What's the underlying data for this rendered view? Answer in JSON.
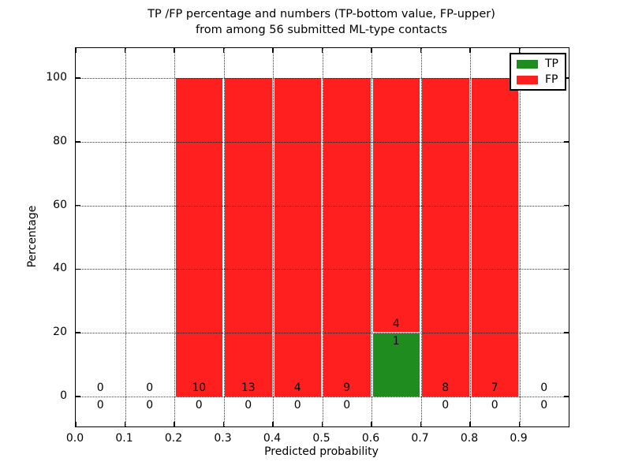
{
  "figure": {
    "title_line1": "TP /FP percentage and numbers (TP-bottom value, FP-upper)",
    "title_line2": "from among 56 submitted ML-type contacts",
    "xlabel": "Predicted probability",
    "ylabel": "Percentage"
  },
  "legend": {
    "items": [
      {
        "label": "TP",
        "color": "#1e8c1e"
      },
      {
        "label": "FP",
        "color": "#ff1f1f"
      }
    ]
  },
  "chart_data": {
    "type": "bar",
    "stacked": true,
    "title": "TP /FP percentage and numbers (TP-bottom value, FP-upper) from among 56 submitted ML-type contacts",
    "xlabel": "Predicted probability",
    "ylabel": "Percentage",
    "xlim": [
      0.0,
      1.0
    ],
    "ylim": [
      -10,
      110
    ],
    "grid": true,
    "legend_position": "upper right",
    "total_contacts": 56,
    "bin_width": 0.1,
    "xticks": [
      "0.0",
      "0.1",
      "0.2",
      "0.3",
      "0.4",
      "0.5",
      "0.6",
      "0.7",
      "0.8",
      "0.9"
    ],
    "yticks": [
      "0",
      "20",
      "40",
      "60",
      "80",
      "100"
    ],
    "series": [
      {
        "name": "TP",
        "color": "#1e8c1e",
        "label_position": "bottom"
      },
      {
        "name": "FP",
        "color": "#ff1f1f",
        "label_position": "upper"
      }
    ],
    "bins": [
      {
        "x0": 0.0,
        "x1": 0.1,
        "tp_count": 0,
        "fp_count": 0,
        "tp_pct": 0,
        "fp_pct": 0
      },
      {
        "x0": 0.1,
        "x1": 0.2,
        "tp_count": 0,
        "fp_count": 0,
        "tp_pct": 0,
        "fp_pct": 0
      },
      {
        "x0": 0.2,
        "x1": 0.3,
        "tp_count": 0,
        "fp_count": 10,
        "tp_pct": 0,
        "fp_pct": 100
      },
      {
        "x0": 0.3,
        "x1": 0.4,
        "tp_count": 0,
        "fp_count": 13,
        "tp_pct": 0,
        "fp_pct": 100
      },
      {
        "x0": 0.4,
        "x1": 0.5,
        "tp_count": 0,
        "fp_count": 4,
        "tp_pct": 0,
        "fp_pct": 100
      },
      {
        "x0": 0.5,
        "x1": 0.6,
        "tp_count": 0,
        "fp_count": 9,
        "tp_pct": 0,
        "fp_pct": 100
      },
      {
        "x0": 0.6,
        "x1": 0.7,
        "tp_count": 1,
        "fp_count": 4,
        "tp_pct": 20,
        "fp_pct": 80
      },
      {
        "x0": 0.7,
        "x1": 0.8,
        "tp_count": 0,
        "fp_count": 8,
        "tp_pct": 0,
        "fp_pct": 100
      },
      {
        "x0": 0.8,
        "x1": 0.9,
        "tp_count": 0,
        "fp_count": 7,
        "tp_pct": 0,
        "fp_pct": 100
      },
      {
        "x0": 0.9,
        "x1": 1.0,
        "tp_count": 0,
        "fp_count": 0,
        "tp_pct": 0,
        "fp_pct": 0
      }
    ]
  }
}
